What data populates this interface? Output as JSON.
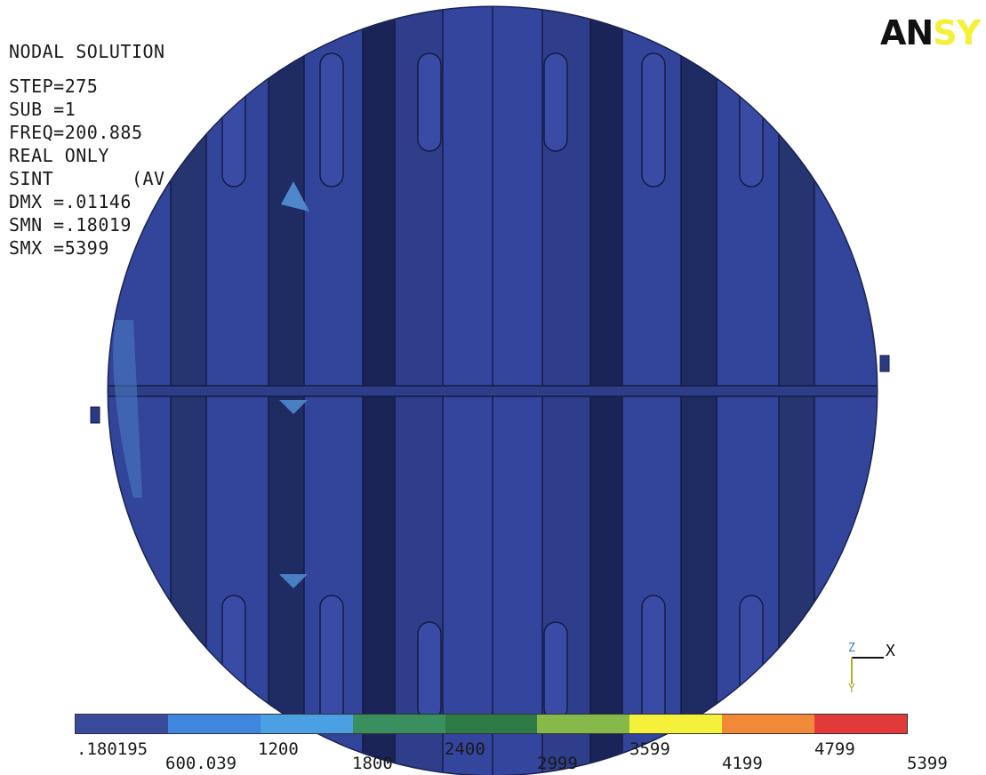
{
  "header": {
    "title": "NODAL SOLUTION",
    "lines": [
      "STEP=275",
      "SUB =1",
      "FREQ=200.885",
      "REAL ONLY",
      "SINT       (AV",
      "DMX =.01146",
      "SMN =.18019",
      "SMX =5399"
    ]
  },
  "logo": {
    "text_dark": "AN",
    "text_yellow": "SY"
  },
  "legend": {
    "colors": [
      "#3a4a9a",
      "#3f86df",
      "#4aa0e2",
      "#3a8f5e",
      "#2f7b45",
      "#86b94a",
      "#f5f03a",
      "#f08a38",
      "#e23a3a"
    ],
    "labels": [
      ".180195",
      "600.039",
      "1200",
      "1800",
      "2400",
      "2999",
      "3599",
      "4199",
      "4799",
      "5399"
    ]
  },
  "triad": {
    "x": "X",
    "z": "Z",
    "y": "Y"
  }
}
